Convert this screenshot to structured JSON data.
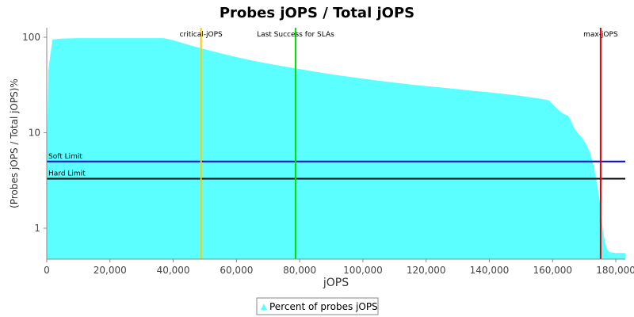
{
  "chart_data": {
    "type": "area",
    "title": "Probes jOPS / Total jOPS",
    "xlabel": "jOPS",
    "ylabel": "(Probes jOPS / Total jOPS)%",
    "y_scale": "log",
    "xlim": [
      0,
      183000
    ],
    "ylim": [
      0.5,
      130
    ],
    "x_ticks": [
      0,
      20000,
      40000,
      60000,
      80000,
      100000,
      120000,
      140000,
      160000,
      180000
    ],
    "x_tick_labels": [
      "0",
      "20,000",
      "40,000",
      "60,000",
      "80,000",
      "100,000",
      "120,000",
      "140,000",
      "160,000",
      "180,000"
    ],
    "y_ticks": [
      1,
      10,
      100
    ],
    "y_tick_labels": [
      "1",
      "10",
      "100"
    ],
    "grid": false,
    "legend_position": "bottom",
    "series": [
      {
        "name": "Percent of probes jOPS",
        "color": "#5cffff",
        "x": [
          0,
          500,
          1800,
          5000,
          10000,
          20000,
          30000,
          37000,
          40000,
          45000,
          50000,
          55000,
          60000,
          65000,
          70000,
          75000,
          80000,
          85000,
          90000,
          95000,
          100000,
          105000,
          110000,
          115000,
          120000,
          125000,
          130000,
          135000,
          140000,
          145000,
          150000,
          155000,
          158000,
          159000,
          160000,
          161000,
          162000,
          163000,
          164000,
          165000,
          166000,
          167000,
          168000,
          169000,
          170000,
          171000,
          172000,
          173000,
          174000,
          175000,
          176000,
          177000,
          178000,
          180000,
          183000
        ],
        "y": [
          5,
          45,
          95,
          97,
          98,
          98,
          98,
          98,
          93,
          83,
          75,
          68,
          62,
          57,
          53,
          49.5,
          46.5,
          43.5,
          41,
          38.8,
          36.8,
          35,
          33.5,
          32,
          30.8,
          29.7,
          28.6,
          27.5,
          26.5,
          25.4,
          24.3,
          23,
          22.2,
          21.7,
          20,
          18.5,
          17.2,
          16.2,
          15.5,
          15,
          13,
          11,
          9.8,
          9.2,
          8.2,
          7.2,
          6,
          4.5,
          3,
          1.8,
          0.9,
          0.62,
          0.56,
          0.55,
          0.55
        ]
      }
    ],
    "markers": [
      {
        "label": "critical-jOPS",
        "x": 48800,
        "color": "#ffc800"
      },
      {
        "label": "Last Success for SLAs",
        "x": 78700,
        "color": "#00e000"
      },
      {
        "label": "max-jOPS",
        "x": 175200,
        "color": "#e00000"
      }
    ],
    "thresholds": [
      {
        "label": "Soft Limit",
        "y": 5,
        "color": "#0000e0"
      },
      {
        "label": "Hard Limit",
        "y": 3.3,
        "color": "#000000"
      }
    ]
  }
}
